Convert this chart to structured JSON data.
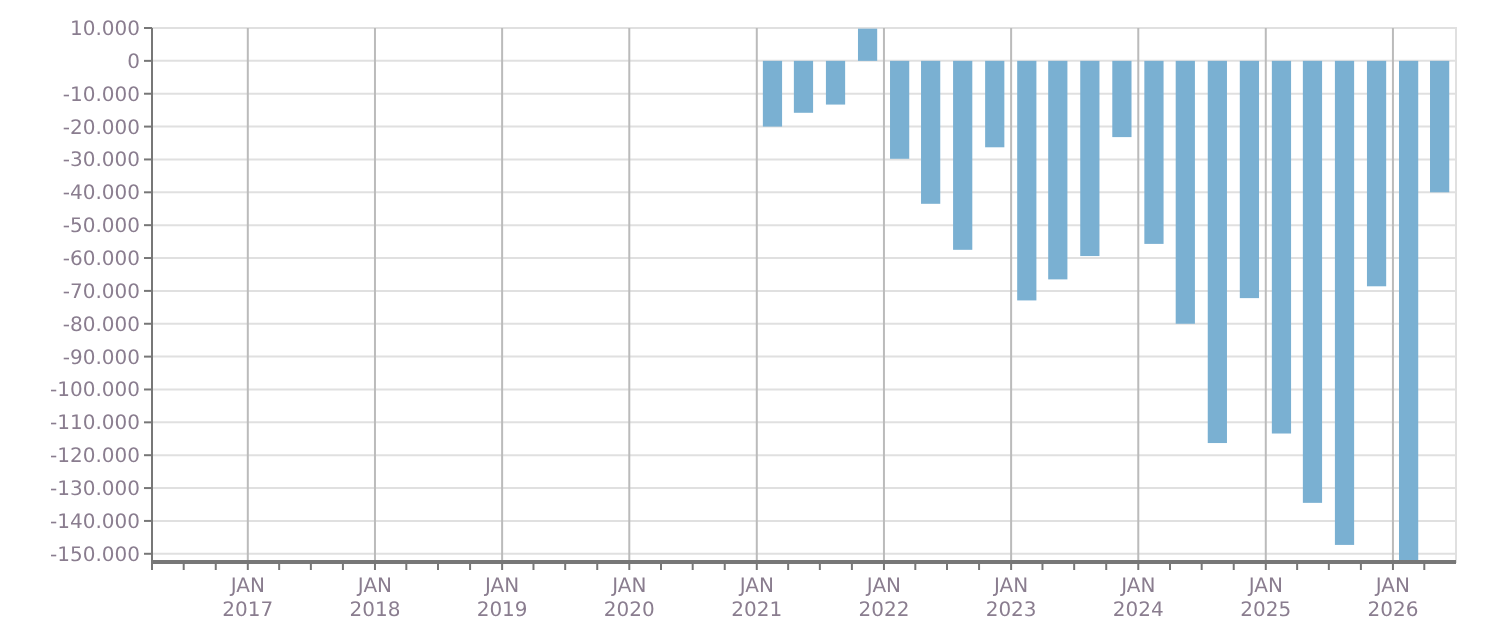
{
  "chart_data": {
    "type": "bar",
    "x": [
      "2021-02-15",
      "2021-05-15",
      "2021-08-15",
      "2021-11-15",
      "2022-02-15",
      "2022-05-15",
      "2022-08-15",
      "2022-11-15",
      "2023-02-15",
      "2023-05-15",
      "2023-08-15",
      "2023-11-15",
      "2024-02-15",
      "2024-05-15",
      "2024-08-15",
      "2024-11-15",
      "2025-02-15",
      "2025-05-15",
      "2025-08-15",
      "2025-11-15",
      "2026-02-15",
      "2026-05-15"
    ],
    "values": [
      -20000,
      -15800,
      -13300,
      9800,
      -29800,
      -43500,
      -57500,
      -26300,
      -72900,
      -66500,
      -59400,
      -23200,
      -55700,
      -80000,
      -116300,
      -72200,
      -113400,
      -134500,
      -147300,
      -68600,
      -152500,
      -40000
    ],
    "color": "#7ab0d2",
    "xlim": [
      "2016-04-01",
      "2026-07-01"
    ],
    "xticks": [
      {
        "value": "2016-04-01",
        "label": null
      },
      {
        "value": "2016-07-01",
        "label": null
      },
      {
        "value": "2016-10-01",
        "label": null
      },
      {
        "value": "2017-01-01",
        "label": "JAN\n2017"
      },
      {
        "value": "2017-04-01",
        "label": null
      },
      {
        "value": "2017-07-01",
        "label": null
      },
      {
        "value": "2017-10-01",
        "label": null
      },
      {
        "value": "2018-01-01",
        "label": "JAN\n2018"
      },
      {
        "value": "2018-04-01",
        "label": null
      },
      {
        "value": "2018-07-01",
        "label": null
      },
      {
        "value": "2018-10-01",
        "label": null
      },
      {
        "value": "2019-01-01",
        "label": "JAN\n2019"
      },
      {
        "value": "2019-04-01",
        "label": null
      },
      {
        "value": "2019-07-01",
        "label": null
      },
      {
        "value": "2019-10-01",
        "label": null
      },
      {
        "value": "2020-01-01",
        "label": "JAN\n2020"
      },
      {
        "value": "2020-04-01",
        "label": null
      },
      {
        "value": "2020-07-01",
        "label": null
      },
      {
        "value": "2020-10-01",
        "label": null
      },
      {
        "value": "2021-01-01",
        "label": "JAN\n2021"
      },
      {
        "value": "2021-04-01",
        "label": null
      },
      {
        "value": "2021-07-01",
        "label": null
      },
      {
        "value": "2021-10-01",
        "label": null
      },
      {
        "value": "2022-01-01",
        "label": "JAN\n2022"
      },
      {
        "value": "2022-04-01",
        "label": null
      },
      {
        "value": "2022-07-01",
        "label": null
      },
      {
        "value": "2022-10-01",
        "label": null
      },
      {
        "value": "2023-01-01",
        "label": "JAN\n2023"
      },
      {
        "value": "2023-04-01",
        "label": null
      },
      {
        "value": "2023-07-01",
        "label": null
      },
      {
        "value": "2023-10-01",
        "label": null
      },
      {
        "value": "2024-01-01",
        "label": "JAN\n2024"
      },
      {
        "value": "2024-04-01",
        "label": null
      },
      {
        "value": "2024-07-01",
        "label": null
      },
      {
        "value": "2024-10-01",
        "label": null
      },
      {
        "value": "2025-01-01",
        "label": "JAN\n2025"
      },
      {
        "value": "2025-04-01",
        "label": null
      },
      {
        "value": "2025-07-01",
        "label": null
      },
      {
        "value": "2025-10-01",
        "label": null
      },
      {
        "value": "2026-01-01",
        "label": "JAN\n2026"
      },
      {
        "value": "2026-04-01",
        "label": null
      }
    ],
    "ylim": [
      -152500,
      10000
    ],
    "yticks": [
      {
        "value": 10000,
        "label": "10.000"
      },
      {
        "value": 0,
        "label": "0"
      },
      {
        "value": -10000,
        "label": "-10.000"
      },
      {
        "value": -20000,
        "label": "-20.000"
      },
      {
        "value": -30000,
        "label": "-30.000"
      },
      {
        "value": -40000,
        "label": "-40.000"
      },
      {
        "value": -50000,
        "label": "-50.000"
      },
      {
        "value": -60000,
        "label": "-60.000"
      },
      {
        "value": -70000,
        "label": "-70.000"
      },
      {
        "value": -80000,
        "label": "-80.000"
      },
      {
        "value": -90000,
        "label": "-90.000"
      },
      {
        "value": -100000,
        "label": "-100.000"
      },
      {
        "value": -110000,
        "label": "-110.000"
      },
      {
        "value": -120000,
        "label": "-120.000"
      },
      {
        "value": -130000,
        "label": "-130.000"
      },
      {
        "value": -140000,
        "label": "-140.000"
      },
      {
        "value": -150000,
        "label": "-150.000"
      }
    ],
    "grid": true
  }
}
